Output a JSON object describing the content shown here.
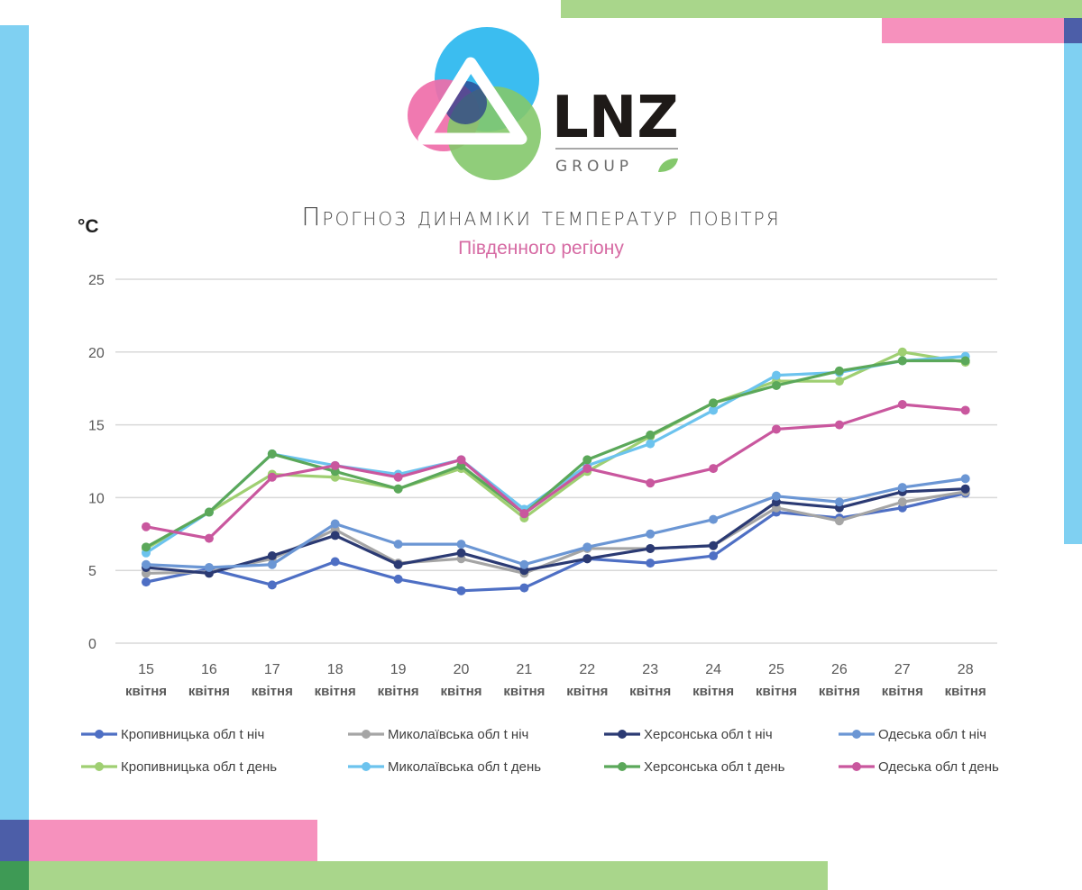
{
  "brand": {
    "name": "LNZ",
    "sub": "GROUP"
  },
  "colors": {
    "blue_strip": "#7fd0f2",
    "green_strip": "#a9d68b",
    "pink_strip": "#f691bd",
    "navy_square": "#4c5ea8",
    "dark_green_square": "#3e9a55"
  },
  "chart_data": {
    "type": "line",
    "title": "Прогноз динаміки температур повітря",
    "subtitle": "Південного регіону",
    "unit": "°C",
    "ylim": [
      0,
      25
    ],
    "yticks": [
      0,
      5,
      10,
      15,
      20,
      25
    ],
    "grid": true,
    "legend_position": "bottom",
    "categories": [
      "15",
      "16",
      "17",
      "18",
      "19",
      "20",
      "21",
      "22",
      "23",
      "24",
      "25",
      "26",
      "27",
      "28"
    ],
    "category_sublabel": "квітня",
    "series": [
      {
        "name": "Кропивницька обл t ніч",
        "color": "#4e6fc4",
        "values": [
          4.2,
          5.1,
          4.0,
          5.6,
          4.4,
          3.6,
          3.8,
          5.8,
          5.5,
          6.0,
          9.0,
          8.6,
          9.3,
          10.3
        ]
      },
      {
        "name": "Миколаївська обл t ніч",
        "color": "#a5a5a5",
        "values": [
          4.8,
          4.9,
          5.8,
          7.8,
          5.5,
          5.8,
          4.8,
          6.5,
          6.5,
          6.7,
          9.3,
          8.4,
          9.7,
          10.4
        ]
      },
      {
        "name": "Херсонська обл t ніч",
        "color": "#2b3a73",
        "values": [
          5.2,
          4.8,
          6.0,
          7.4,
          5.4,
          6.2,
          5.0,
          5.8,
          6.5,
          6.7,
          9.7,
          9.3,
          10.4,
          10.6
        ]
      },
      {
        "name": "Одеська обл t ніч",
        "color": "#6b96d4",
        "values": [
          5.4,
          5.2,
          5.4,
          8.2,
          6.8,
          6.8,
          5.4,
          6.6,
          7.5,
          8.5,
          10.1,
          9.7,
          10.7,
          11.3
        ]
      },
      {
        "name": "Кропивницька обл t день",
        "color": "#9fcf72",
        "values": [
          6.5,
          9.0,
          11.6,
          11.4,
          10.6,
          12.0,
          8.6,
          11.8,
          14.2,
          16.5,
          18.0,
          18.0,
          20.0,
          19.3
        ]
      },
      {
        "name": "Миколаївська обл t день",
        "color": "#6cc3ee",
        "values": [
          6.2,
          9.0,
          13.0,
          12.2,
          11.6,
          12.6,
          9.2,
          12.2,
          13.7,
          16.0,
          18.4,
          18.6,
          19.4,
          19.7
        ]
      },
      {
        "name": "Херсонська обл t день",
        "color": "#5ba85a",
        "values": [
          6.6,
          9.0,
          13.0,
          11.8,
          10.6,
          12.2,
          8.9,
          12.6,
          14.3,
          16.5,
          17.7,
          18.7,
          19.4,
          19.4
        ]
      },
      {
        "name": "Одеська обл t день",
        "color": "#c9579e",
        "values": [
          8.0,
          7.2,
          11.4,
          12.2,
          11.4,
          12.6,
          8.9,
          12.0,
          11.0,
          12.0,
          14.7,
          15.0,
          16.4,
          16.0
        ]
      }
    ]
  }
}
